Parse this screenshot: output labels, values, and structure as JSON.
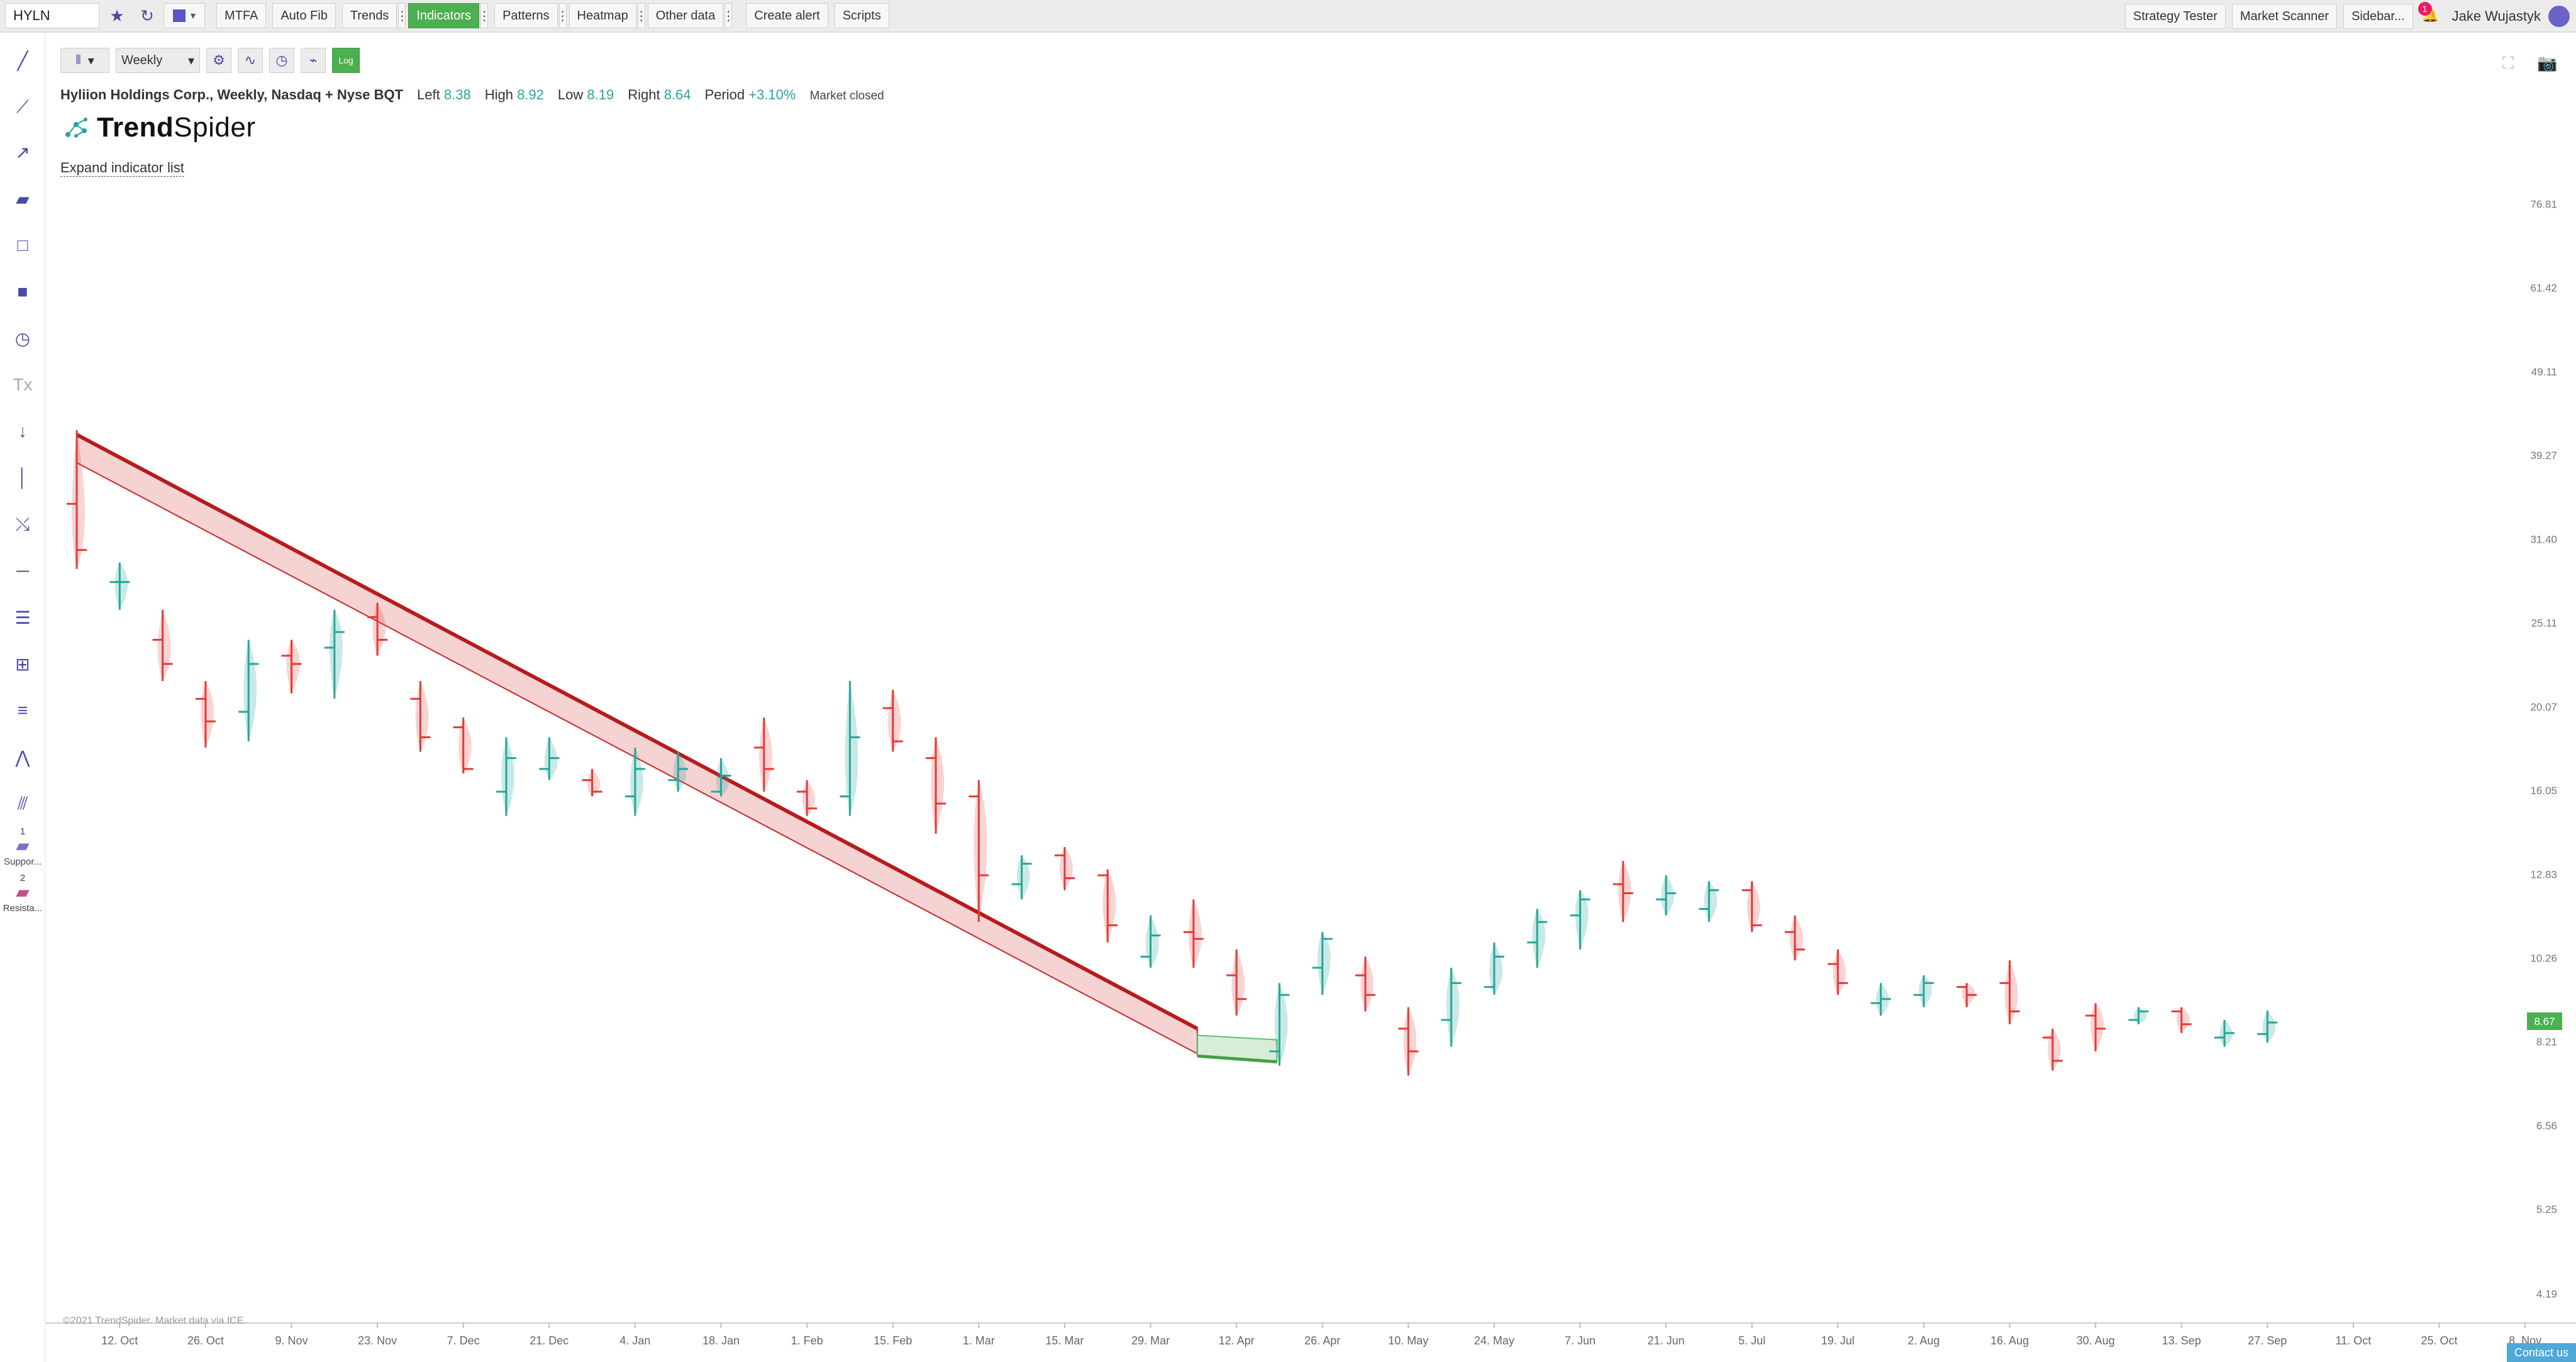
{
  "topbar": {
    "symbol": "HYLN",
    "buttons": {
      "mtfa": "MTFA",
      "auto_fib": "Auto Fib",
      "trends": "Trends",
      "indicators": "Indicators",
      "patterns": "Patterns",
      "heatmap": "Heatmap",
      "other_data": "Other data",
      "create_alert": "Create alert",
      "scripts": "Scripts"
    },
    "right": {
      "strategy_tester": "Strategy Tester",
      "market_scanner": "Market Scanner",
      "sidebar": "Sidebar...",
      "notification_count": "1",
      "user_name": "Jake Wujastyk"
    }
  },
  "left_toolbar": {
    "support_index": "1",
    "support_label": "Suppor...",
    "resistance_index": "2",
    "resistance_label": "Resista..."
  },
  "chart_toolbar": {
    "timeframe": "Weekly",
    "log_label": "Log"
  },
  "legend": {
    "title": "Hyliion Holdings Corp., Weekly, Nasdaq + Nyse BQT",
    "left_label": "Left",
    "left_value": "8.38",
    "high_label": "High",
    "high_value": "8.92",
    "low_label": "Low",
    "low_value": "8.19",
    "right_label": "Right",
    "right_value": "8.64",
    "period_label": "Period",
    "period_value": "+3.10%",
    "market_status": "Market closed"
  },
  "brand": {
    "bold": "Trend",
    "regular": "Spider"
  },
  "expand_indicator_list": "Expand indicator list",
  "copyright": "©2021 TrendSpider. Market data via ICE.",
  "contact_us": "Contact us",
  "colors": {
    "up": "#26a69a",
    "down": "#e53935",
    "resistance": "#b71c1c",
    "support": "#43a047",
    "accent": "#5b54c4"
  },
  "chart_data": {
    "type": "candlestick",
    "scale": "log",
    "ylim": [
      3.9,
      90
    ],
    "y_ticks": [
      "76.81",
      "61.42",
      "49.11",
      "39.27",
      "31.40",
      "25.11",
      "20.07",
      "16.05",
      "12.83",
      "10.26",
      "8.21",
      "6.56",
      "5.25",
      "4.19"
    ],
    "x_ticks": [
      "12. Oct",
      "26. Oct",
      "9. Nov",
      "23. Nov",
      "7. Dec",
      "21. Dec",
      "4. Jan",
      "18. Jan",
      "1. Feb",
      "15. Feb",
      "1. Mar",
      "15. Mar",
      "29. Mar",
      "12. Apr",
      "26. Apr",
      "10. May",
      "24. May",
      "7. Jun",
      "21. Jun",
      "5. Jul",
      "19. Jul",
      "2. Aug",
      "16. Aug",
      "30. Aug",
      "13. Sep",
      "27. Sep",
      "11. Oct",
      "25. Oct",
      "8. Nov"
    ],
    "last_price": "8.67",
    "candles": [
      {
        "o": 34.5,
        "h": 42.0,
        "l": 29.0,
        "c": 30.5
      },
      {
        "o": 28.0,
        "h": 29.5,
        "l": 26.0,
        "c": 28.0
      },
      {
        "o": 24.0,
        "h": 26.0,
        "l": 21.5,
        "c": 22.5
      },
      {
        "o": 20.5,
        "h": 21.5,
        "l": 18.0,
        "c": 19.3
      },
      {
        "o": 19.8,
        "h": 24.0,
        "l": 18.3,
        "c": 22.5
      },
      {
        "o": 23.0,
        "h": 24.0,
        "l": 20.8,
        "c": 22.5
      },
      {
        "o": 23.5,
        "h": 26.0,
        "l": 20.5,
        "c": 24.5
      },
      {
        "o": 25.5,
        "h": 26.5,
        "l": 23.0,
        "c": 24.0
      },
      {
        "o": 20.5,
        "h": 21.5,
        "l": 17.8,
        "c": 18.5
      },
      {
        "o": 19.0,
        "h": 19.5,
        "l": 16.8,
        "c": 17.0
      },
      {
        "o": 16.0,
        "h": 18.5,
        "l": 15.0,
        "c": 17.5
      },
      {
        "o": 17.0,
        "h": 18.5,
        "l": 16.5,
        "c": 17.5
      },
      {
        "o": 16.5,
        "h": 17.0,
        "l": 15.8,
        "c": 16.0
      },
      {
        "o": 15.8,
        "h": 18.0,
        "l": 15.0,
        "c": 17.0
      },
      {
        "o": 16.5,
        "h": 17.8,
        "l": 16.0,
        "c": 17.0
      },
      {
        "o": 16.0,
        "h": 17.5,
        "l": 15.8,
        "c": 16.7
      },
      {
        "o": 18.0,
        "h": 19.5,
        "l": 16.0,
        "c": 17.0
      },
      {
        "o": 16.0,
        "h": 16.5,
        "l": 15.0,
        "c": 15.3
      },
      {
        "o": 15.8,
        "h": 21.5,
        "l": 15.0,
        "c": 18.5
      },
      {
        "o": 20.0,
        "h": 21.0,
        "l": 17.8,
        "c": 18.3
      },
      {
        "o": 17.5,
        "h": 18.5,
        "l": 14.3,
        "c": 15.5
      },
      {
        "o": 15.8,
        "h": 16.5,
        "l": 11.3,
        "c": 12.8
      },
      {
        "o": 12.5,
        "h": 13.5,
        "l": 12.0,
        "c": 13.2
      },
      {
        "o": 13.5,
        "h": 13.8,
        "l": 12.3,
        "c": 12.7
      },
      {
        "o": 12.8,
        "h": 13.0,
        "l": 10.7,
        "c": 11.2
      },
      {
        "o": 10.3,
        "h": 11.5,
        "l": 10.0,
        "c": 10.9
      },
      {
        "o": 11.0,
        "h": 12.0,
        "l": 10.0,
        "c": 10.8
      },
      {
        "o": 9.8,
        "h": 10.5,
        "l": 8.8,
        "c": 9.2
      },
      {
        "o": 8.0,
        "h": 9.6,
        "l": 7.7,
        "c": 9.3
      },
      {
        "o": 10.0,
        "h": 11.0,
        "l": 9.3,
        "c": 10.8
      },
      {
        "o": 9.8,
        "h": 10.3,
        "l": 8.9,
        "c": 9.3
      },
      {
        "o": 8.5,
        "h": 9.0,
        "l": 7.5,
        "c": 8.0
      },
      {
        "o": 8.7,
        "h": 10.0,
        "l": 8.1,
        "c": 9.6
      },
      {
        "o": 9.5,
        "h": 10.7,
        "l": 9.3,
        "c": 10.3
      },
      {
        "o": 10.7,
        "h": 11.7,
        "l": 10.0,
        "c": 11.3
      },
      {
        "o": 11.5,
        "h": 12.3,
        "l": 10.5,
        "c": 12.0
      },
      {
        "o": 12.5,
        "h": 13.3,
        "l": 11.3,
        "c": 12.2
      },
      {
        "o": 12.0,
        "h": 12.8,
        "l": 11.5,
        "c": 12.2
      },
      {
        "o": 11.7,
        "h": 12.6,
        "l": 11.3,
        "c": 12.3
      },
      {
        "o": 12.3,
        "h": 12.6,
        "l": 11.0,
        "c": 11.2
      },
      {
        "o": 11.0,
        "h": 11.5,
        "l": 10.2,
        "c": 10.5
      },
      {
        "o": 10.1,
        "h": 10.5,
        "l": 9.3,
        "c": 9.6
      },
      {
        "o": 9.1,
        "h": 9.6,
        "l": 8.8,
        "c": 9.2
      },
      {
        "o": 9.3,
        "h": 9.8,
        "l": 9.0,
        "c": 9.6
      },
      {
        "o": 9.5,
        "h": 9.6,
        "l": 9.0,
        "c": 9.3
      },
      {
        "o": 9.6,
        "h": 10.2,
        "l": 8.6,
        "c": 8.9
      },
      {
        "o": 8.3,
        "h": 8.5,
        "l": 7.6,
        "c": 7.8
      },
      {
        "o": 8.8,
        "h": 9.1,
        "l": 8.0,
        "c": 8.5
      },
      {
        "o": 8.7,
        "h": 9.0,
        "l": 8.6,
        "c": 8.9
      },
      {
        "o": 8.9,
        "h": 9.0,
        "l": 8.4,
        "c": 8.6
      },
      {
        "o": 8.3,
        "h": 8.7,
        "l": 8.1,
        "c": 8.4
      },
      {
        "o": 8.38,
        "h": 8.92,
        "l": 8.19,
        "c": 8.64
      }
    ],
    "resistance": {
      "start_index": 0,
      "end_index": 26,
      "top": [
        41.5,
        8.5
      ],
      "bottom": [
        38.5,
        7.95
      ]
    },
    "support": {
      "start_index": 28,
      "end_index": 26,
      "top": [
        8.25,
        8.35
      ],
      "bottom": [
        7.78,
        7.9
      ]
    }
  }
}
